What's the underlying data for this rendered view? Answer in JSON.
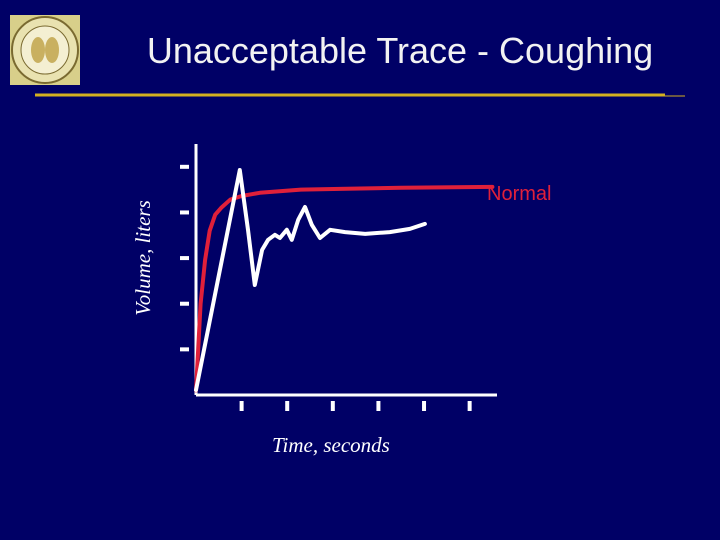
{
  "chart_data": {
    "type": "line",
    "title": "Unacceptable Trace - Coughing",
    "x_label": "Time, seconds",
    "y_label": "Volume, liters",
    "annotation": "Normal",
    "xlim": [
      0,
      6.6
    ],
    "ylim": [
      0,
      5.5
    ],
    "xticks": [
      1,
      2,
      3,
      4,
      5,
      6
    ],
    "yticks": [
      1,
      2,
      3,
      4,
      5
    ],
    "series": [
      {
        "name": "Normal",
        "color": "#e0203a",
        "x": [
          0,
          0.1,
          0.2,
          0.3,
          0.42,
          0.55,
          0.75,
          1,
          1.4,
          2.3,
          3.3,
          4.5,
          6.5
        ],
        "values": [
          0.1,
          2.0,
          2.96,
          3.6,
          3.95,
          4.1,
          4.28,
          4.36,
          4.43,
          4.5,
          4.52,
          4.54,
          4.56
        ]
      },
      {
        "name": "Coughing",
        "color": "#ffffff",
        "x": [
          0,
          0.96,
          1.14,
          1.29,
          1.45,
          1.58,
          1.73,
          1.84,
          1.99,
          2.1,
          2.24,
          2.39,
          2.54,
          2.72,
          2.94,
          3.27,
          3.71,
          4.25,
          4.69,
          5.02
        ],
        "values": [
          0.11,
          4.93,
          3.62,
          2.41,
          3.18,
          3.4,
          3.51,
          3.44,
          3.62,
          3.4,
          3.84,
          4.12,
          3.73,
          3.44,
          3.62,
          3.57,
          3.53,
          3.57,
          3.64,
          3.75
        ]
      }
    ]
  }
}
